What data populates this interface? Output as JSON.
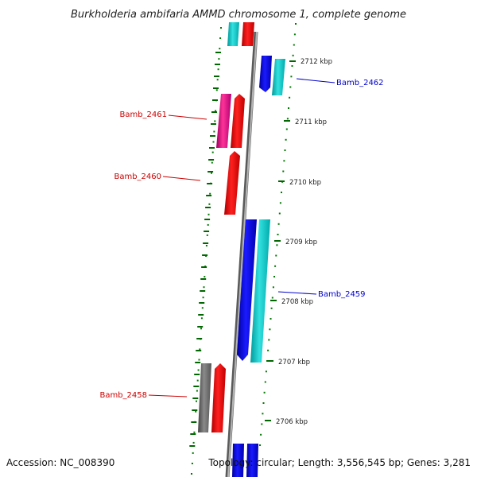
{
  "title": "Burkholderia ambifaria AMMD chromosome 1, complete genome",
  "accession": "Accession: NC_008390",
  "topology": "Topology: circular; Length: 3,556,545 bp; Genes: 3,281",
  "colors": {
    "forward_label": "#cc0000",
    "reverse_label": "#0000cc",
    "backbone": "#888888",
    "ticks": "#006600"
  },
  "kbp_marks": [
    {
      "label": "2712 kbp"
    },
    {
      "label": "2711 kbp"
    },
    {
      "label": "2710 kbp"
    },
    {
      "label": "2709 kbp"
    },
    {
      "label": "2708 kbp"
    },
    {
      "label": "2707 kbp"
    },
    {
      "label": "2706 kbp"
    }
  ],
  "gene_labels": [
    {
      "text": "Bamb_2462",
      "strand": "reverse"
    },
    {
      "text": "Bamb_2461",
      "strand": "forward"
    },
    {
      "text": "Bamb_2460",
      "strand": "forward"
    },
    {
      "text": "Bamb_2459",
      "strand": "reverse"
    },
    {
      "text": "Bamb_2458",
      "strand": "forward"
    }
  ]
}
